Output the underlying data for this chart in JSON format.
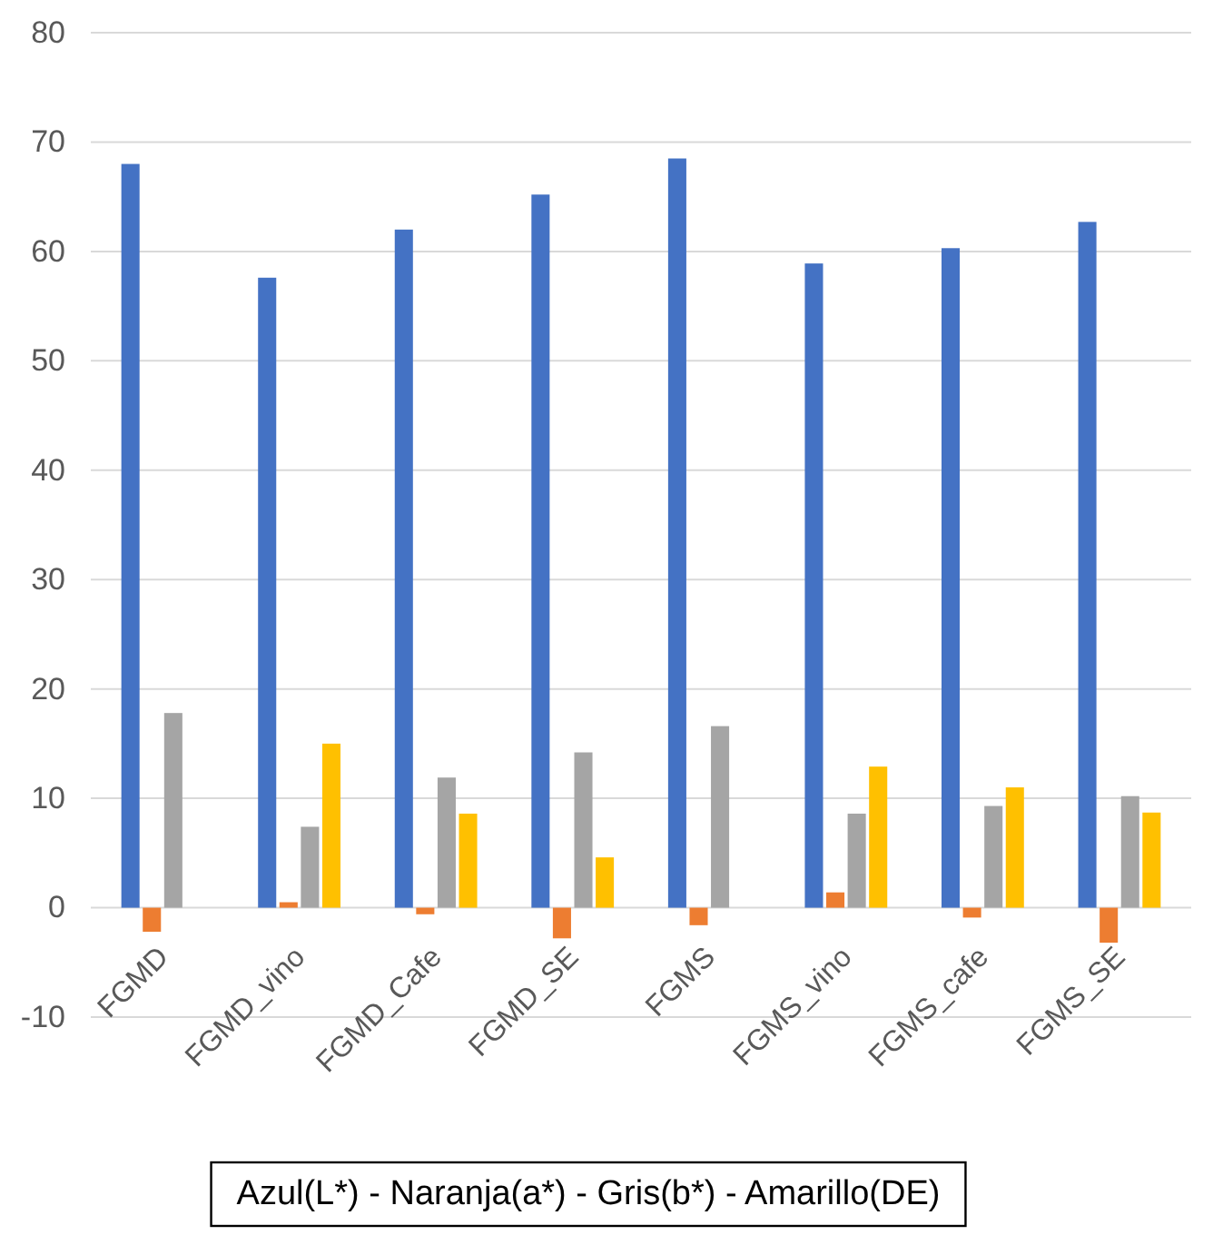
{
  "chart_data": {
    "type": "bar",
    "xlabel": "Azul(L*) - Naranja(a*) - Gris(b*) - Amarillo(DE)",
    "categories": [
      "FGMD",
      "FGMD_vino",
      "FGMD_Cafe",
      "FGMD_SE",
      "FGMS",
      "FGMS_vino",
      "FGMS_cafe",
      "FGMS_SE"
    ],
    "series": [
      {
        "color": "#4472c4",
        "values": [
          68,
          57.6,
          62,
          65.2,
          68.5,
          58.9,
          60.3,
          62.7
        ]
      },
      {
        "color": "#ed7d31",
        "values": [
          -2.2,
          0.5,
          -0.6,
          -2.8,
          -1.6,
          1.4,
          -0.9,
          -3.2
        ]
      },
      {
        "color": "#a5a5a5",
        "values": [
          17.8,
          7.4,
          11.9,
          14.2,
          16.6,
          8.6,
          9.3,
          10.2
        ]
      },
      {
        "color": "#ffc000",
        "values": [
          null,
          15,
          8.6,
          4.6,
          null,
          12.9,
          11,
          8.7
        ]
      }
    ],
    "ylim": [
      -10,
      80
    ],
    "yticks": [
      -10,
      0,
      10,
      20,
      30,
      40,
      50,
      60,
      70,
      80
    ],
    "grid": "y"
  }
}
